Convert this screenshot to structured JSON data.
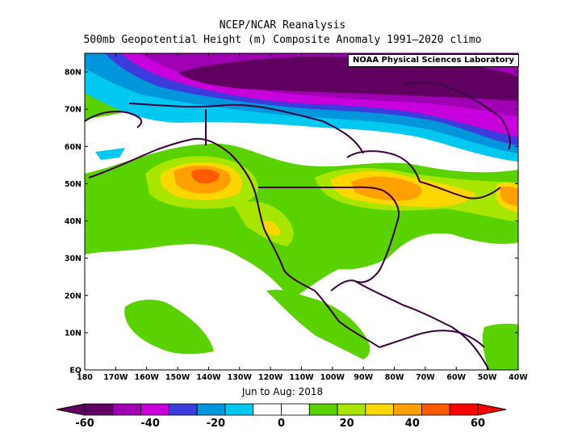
{
  "title_line1": "NCEP/NCAR Reanalysis",
  "title_line2": "500mb Geopotential Height (m) Composite Anomaly 1991–2020 climo",
  "credit": "NOAA Physical Sciences Laboratory",
  "period": "Jun to Aug: 2018",
  "lat_labels": [
    "80N",
    "70N",
    "60N",
    "50N",
    "40N",
    "30N",
    "20N",
    "10N",
    "EQ"
  ],
  "lon_labels": [
    "180",
    "170W",
    "160W",
    "150W",
    "140W",
    "130W",
    "120W",
    "110W",
    "100W",
    "90W",
    "80W",
    "70W",
    "60W",
    "50W",
    "40W"
  ],
  "colorbar": {
    "labels": [
      "-60",
      "-40",
      "-20",
      "0",
      "20",
      "40",
      "60"
    ],
    "colors": [
      "#600060",
      "#a000b4",
      "#c800dc",
      "#3c3cdc",
      "#0096dc",
      "#00c8f0",
      "#ffffff",
      "#ffffff",
      "#5ad200",
      "#a8e600",
      "#ffd700",
      "#ffa000",
      "#ff5a00",
      "#ff0000"
    ]
  },
  "map": {
    "region": "North Pacific and North America, 180–40W, EQ–85N",
    "field": "500mb geopotential height anomaly (m)"
  }
}
